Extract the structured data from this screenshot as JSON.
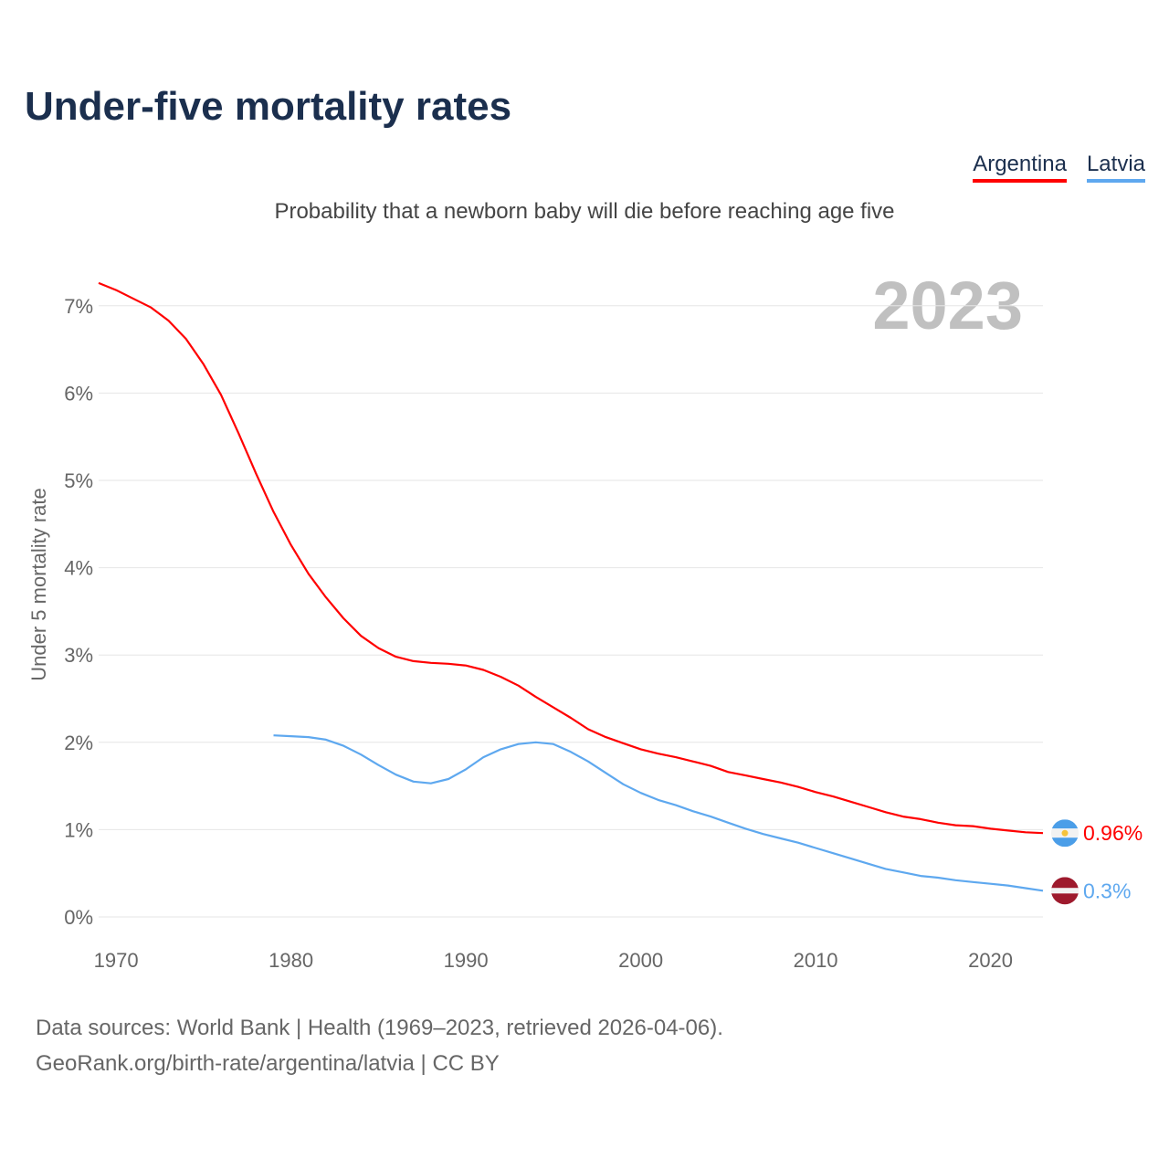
{
  "title": "Under-five mortality rates",
  "subtitle": "Probability that a newborn baby will die before reaching age five",
  "year_label": "2023",
  "footer": {
    "line1": "Data sources: World Bank | Health (1969–2023, retrieved 2026-04-06).",
    "line2": "GeoRank.org/birth-rate/argentina/latvia | CC BY"
  },
  "chart_data": {
    "type": "line",
    "title": "Under-five mortality rates",
    "ylabel": "Under 5 mortality rate",
    "xlabel": "",
    "xlim": [
      1969,
      2023
    ],
    "ylim": [
      0,
      7
    ],
    "x_ticks": [
      "1970",
      "1980",
      "1990",
      "2000",
      "2010",
      "2020"
    ],
    "y_ticks": [
      "0%",
      "1%",
      "2%",
      "3%",
      "4%",
      "5%",
      "6%",
      "7%"
    ],
    "grid": true,
    "legend_position": "top-right",
    "series": [
      {
        "name": "Argentina",
        "color": "#ff0000",
        "end_label": "0.96%",
        "start_year": 1969,
        "values": [
          7.26,
          7.18,
          7.08,
          6.98,
          6.83,
          6.62,
          6.33,
          5.98,
          5.54,
          5.08,
          4.64,
          4.26,
          3.93,
          3.66,
          3.42,
          3.22,
          3.08,
          2.98,
          2.93,
          2.91,
          2.9,
          2.88,
          2.83,
          2.75,
          2.65,
          2.52,
          2.4,
          2.28,
          2.15,
          2.06,
          1.99,
          1.92,
          1.87,
          1.83,
          1.78,
          1.73,
          1.66,
          1.62,
          1.58,
          1.54,
          1.49,
          1.43,
          1.38,
          1.32,
          1.26,
          1.2,
          1.15,
          1.12,
          1.08,
          1.05,
          1.04,
          1.01,
          0.99,
          0.97,
          0.96
        ]
      },
      {
        "name": "Latvia",
        "color": "#5ea8ef",
        "end_label": "0.3%",
        "start_year": 1979,
        "values": [
          2.08,
          2.07,
          2.06,
          2.03,
          1.96,
          1.86,
          1.74,
          1.63,
          1.55,
          1.53,
          1.58,
          1.69,
          1.83,
          1.92,
          1.98,
          2.0,
          1.98,
          1.89,
          1.78,
          1.65,
          1.52,
          1.42,
          1.34,
          1.28,
          1.21,
          1.15,
          1.08,
          1.01,
          0.95,
          0.9,
          0.85,
          0.79,
          0.73,
          0.67,
          0.61,
          0.55,
          0.51,
          0.47,
          0.45,
          0.42,
          0.4,
          0.38,
          0.36,
          0.33,
          0.3
        ]
      }
    ]
  }
}
